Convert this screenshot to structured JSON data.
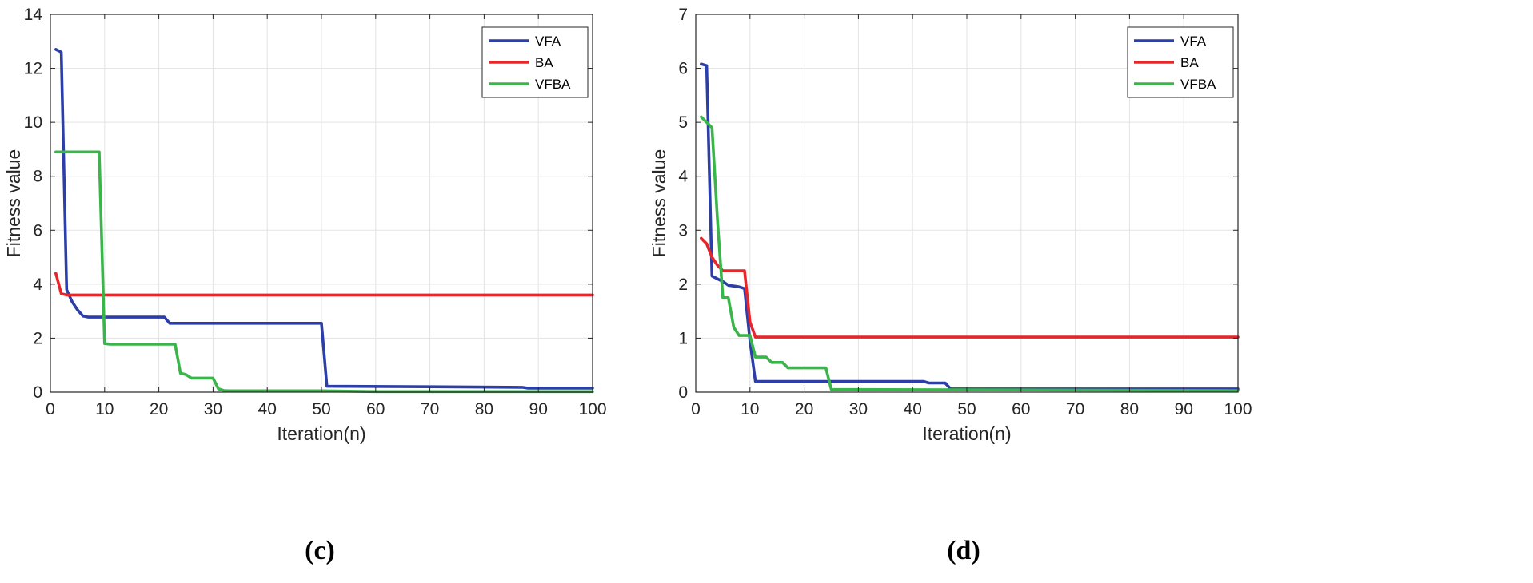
{
  "chart_data": [
    {
      "type": "line",
      "panel": "(c)",
      "xlabel": "Iteration(n)",
      "ylabel": "Fitness value",
      "xlim": [
        0,
        100
      ],
      "ylim": [
        0,
        14
      ],
      "xticks": [
        0,
        10,
        20,
        30,
        40,
        50,
        60,
        70,
        80,
        90,
        100
      ],
      "yticks": [
        0,
        2,
        4,
        6,
        8,
        10,
        12,
        14
      ],
      "grid": true,
      "legend_position": "top-right",
      "series": [
        {
          "name": "VFA",
          "color": "#2c3fa8",
          "x": [
            1,
            2,
            3,
            4,
            5,
            6,
            7,
            21,
            22,
            50,
            51,
            70,
            87,
            88,
            100
          ],
          "y": [
            12.7,
            12.6,
            3.8,
            3.35,
            3.05,
            2.82,
            2.78,
            2.78,
            2.55,
            2.55,
            0.22,
            0.2,
            0.18,
            0.15,
            0.15
          ]
        },
        {
          "name": "BA",
          "color": "#e8262a",
          "x": [
            1,
            2,
            3,
            10,
            100
          ],
          "y": [
            4.4,
            3.65,
            3.6,
            3.6,
            3.6
          ]
        },
        {
          "name": "VFBA",
          "color": "#39b54a",
          "x": [
            1,
            9,
            10,
            11,
            23,
            24,
            25,
            26,
            30,
            31,
            32,
            33,
            50,
            60,
            100
          ],
          "y": [
            8.9,
            8.9,
            1.8,
            1.78,
            1.78,
            0.7,
            0.65,
            0.52,
            0.52,
            0.12,
            0.06,
            0.05,
            0.05,
            0.02,
            0.02
          ]
        }
      ]
    },
    {
      "type": "line",
      "panel": "(d)",
      "xlabel": "Iteration(n)",
      "ylabel": "Fitness value",
      "xlim": [
        0,
        100
      ],
      "ylim": [
        0,
        7
      ],
      "xticks": [
        0,
        10,
        20,
        30,
        40,
        50,
        60,
        70,
        80,
        90,
        100
      ],
      "yticks": [
        0,
        1,
        2,
        3,
        4,
        5,
        6,
        7
      ],
      "grid": true,
      "legend_position": "top-right",
      "series": [
        {
          "name": "VFA",
          "color": "#2c3fa8",
          "x": [
            1,
            2,
            3,
            4,
            5,
            6,
            8,
            9,
            10,
            11,
            42,
            43,
            46,
            47,
            100
          ],
          "y": [
            6.08,
            6.05,
            2.15,
            2.1,
            2.05,
            1.98,
            1.95,
            1.92,
            0.95,
            0.2,
            0.2,
            0.17,
            0.17,
            0.06,
            0.06
          ]
        },
        {
          "name": "BA",
          "color": "#e8262a",
          "x": [
            1,
            2,
            3,
            4,
            5,
            9,
            10,
            11,
            100
          ],
          "y": [
            2.85,
            2.75,
            2.5,
            2.35,
            2.25,
            2.25,
            1.3,
            1.02,
            1.02
          ]
        },
        {
          "name": "VFBA",
          "color": "#39b54a",
          "x": [
            1,
            2,
            3,
            4,
            5,
            6,
            7,
            8,
            10,
            11,
            13,
            14,
            16,
            17,
            24,
            25,
            100
          ],
          "y": [
            5.1,
            5.0,
            4.9,
            3.2,
            1.75,
            1.75,
            1.2,
            1.05,
            1.05,
            0.65,
            0.65,
            0.55,
            0.55,
            0.45,
            0.45,
            0.05,
            0.03
          ]
        }
      ]
    }
  ]
}
